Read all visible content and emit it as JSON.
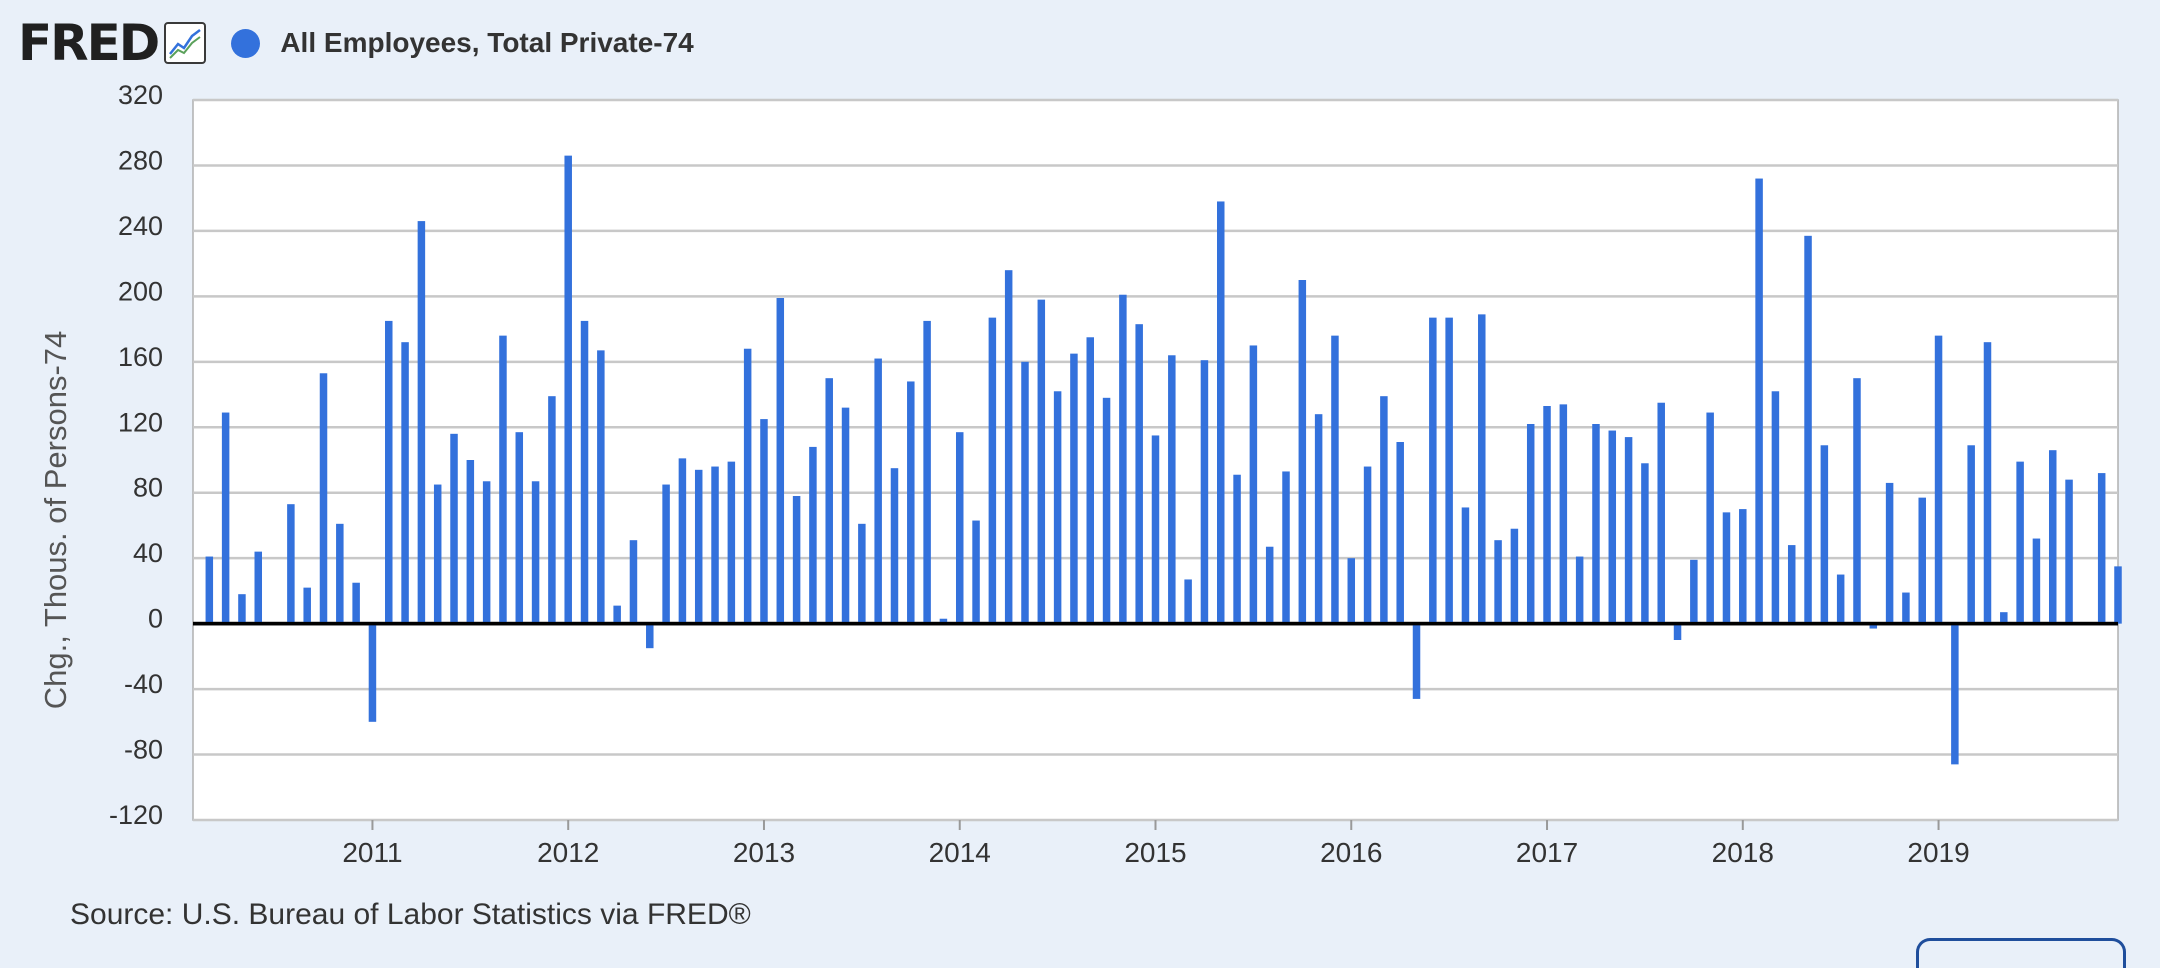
{
  "header": {
    "logo_text": "FRED",
    "logo_icon": "line-chart-icon",
    "series_title": "All Employees, Total Private-74"
  },
  "colors": {
    "bar": "#3371dc",
    "grid": "#c8c8c8",
    "zero_line": "#000000",
    "background": "#e9f0f9",
    "plot_background": "#ffffff"
  },
  "source_text": "Source: U.S. Bureau of Labor Statistics via FRED®",
  "chart_data": {
    "type": "bar",
    "title": "",
    "ylabel": "Chg., Thous. of Persons-74",
    "xlabel": "",
    "ylim": [
      -120,
      320
    ],
    "yticks": [
      320,
      280,
      240,
      200,
      160,
      120,
      80,
      40,
      0,
      -40,
      -80,
      -120
    ],
    "xlim": [
      "2010-02",
      "2019-12"
    ],
    "xtick_labels": [
      "2011",
      "2012",
      "2013",
      "2014",
      "2015",
      "2016",
      "2017",
      "2018",
      "2019"
    ],
    "grid": true,
    "legend": "top-left",
    "series": [
      {
        "name": "All Employees, Total Private-74",
        "start": "2010-03",
        "frequency": "monthly",
        "values": [
          41,
          129,
          18,
          44,
          1,
          73,
          22,
          153,
          61,
          25,
          -60,
          185,
          172,
          246,
          85,
          116,
          100,
          87,
          176,
          117,
          87,
          139,
          286,
          185,
          167,
          11,
          51,
          -15,
          85,
          101,
          94,
          96,
          99,
          168,
          125,
          199,
          78,
          108,
          150,
          132,
          61,
          162,
          95,
          148,
          185,
          3,
          117,
          63,
          187,
          216,
          160,
          198,
          142,
          165,
          175,
          138,
          201,
          183,
          115,
          164,
          27,
          161,
          258,
          91,
          170,
          47,
          93,
          210,
          128,
          176,
          40,
          96,
          139,
          111,
          -46,
          187,
          187,
          71,
          189,
          51,
          58,
          122,
          133,
          134,
          41,
          122,
          118,
          114,
          98,
          135,
          -10,
          39,
          129,
          68,
          70,
          272,
          142,
          48,
          237,
          109,
          30,
          150,
          -3,
          86,
          19,
          77,
          176,
          -86,
          109,
          172,
          7,
          99,
          52,
          106,
          88,
          1,
          92,
          35
        ]
      }
    ]
  }
}
